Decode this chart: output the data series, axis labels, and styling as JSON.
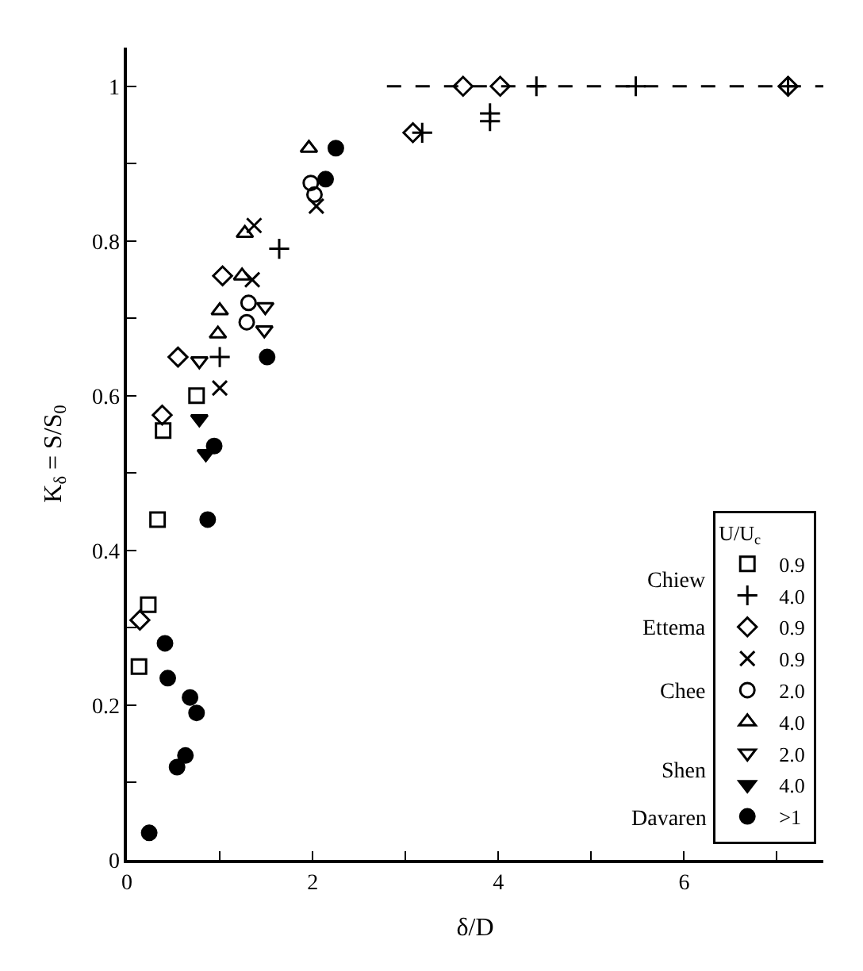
{
  "chart_data": {
    "type": "scatter",
    "xlabel": "δ/D",
    "ylabel": "K$_{δ}$ = S/S$_{0}$",
    "legend_title": "U/U$_{c}$",
    "legend": "bottom right",
    "annotations": [
      "Chiew",
      "Ettema",
      "Chee",
      "Shen",
      "Davaren"
    ],
    "xlim": [
      0,
      7.5
    ],
    "ylim": [
      0,
      1.05
    ],
    "xticks": [
      0,
      {
        "value": 1,
        "label": null
      },
      2,
      {
        "value": 3,
        "label": null
      },
      4,
      {
        "value": 5,
        "label": null
      },
      6,
      {
        "value": 7,
        "label": null
      }
    ],
    "yticks": [
      0,
      {
        "value": 0.1,
        "label": null
      },
      0.2,
      {
        "value": 0.3,
        "label": null
      },
      0.4,
      {
        "value": 0.5,
        "label": null
      },
      0.6,
      {
        "value": 0.7,
        "label": null
      },
      0.8,
      {
        "value": 0.9,
        "label": null
      },
      1
    ],
    "series": [
      {
        "name": "0.9",
        "color": "#000000",
        "marker": "square-open",
        "x": [
          0.13,
          0.23,
          0.33,
          0.39,
          0.75
        ],
        "values": [
          0.25,
          0.33,
          0.44,
          0.555,
          0.6
        ]
      },
      {
        "name": "4.0",
        "color": "#000000",
        "marker": "cross",
        "x": [
          1.0,
          1.64,
          3.18,
          3.91,
          3.91,
          4.41,
          5.48,
          7.12
        ],
        "values": [
          0.65,
          0.79,
          0.94,
          0.965,
          0.955,
          1.0,
          1.0,
          1.0
        ]
      },
      {
        "name": "0.9",
        "color": "#000000",
        "marker": "diamond-open",
        "x": [
          0.14,
          0.38,
          0.55,
          1.03,
          3.08,
          3.62,
          4.02,
          7.12
        ],
        "values": [
          0.31,
          0.575,
          0.65,
          0.755,
          0.94,
          1.0,
          1.0,
          1.0
        ]
      },
      {
        "name": "0.9",
        "color": "#000000",
        "marker": "x",
        "x": [
          1.0,
          1.35,
          1.37,
          2.04
        ],
        "values": [
          0.61,
          0.75,
          0.82,
          0.845
        ]
      },
      {
        "name": "2.0",
        "color": "#000000",
        "marker": "circle-open",
        "x": [
          1.29,
          1.31,
          1.98,
          2.02
        ],
        "values": [
          0.695,
          0.72,
          0.875,
          0.86
        ]
      },
      {
        "name": "4.0",
        "color": "#000000",
        "marker": "triangle-up-open",
        "x": [
          0.98,
          1.0,
          1.24,
          1.27,
          1.96
        ],
        "values": [
          0.68,
          0.71,
          0.755,
          0.81,
          0.92
        ]
      },
      {
        "name": "2.0",
        "color": "#000000",
        "marker": "triangle-down-open",
        "x": [
          0.78,
          1.48,
          1.49
        ],
        "values": [
          0.645,
          0.685,
          0.715
        ]
      },
      {
        "name": "4.0",
        "color": "#000000",
        "marker": "triangle-down",
        "x": [
          0.78,
          0.85
        ],
        "values": [
          0.57,
          0.525
        ]
      },
      {
        "name": ">1",
        "color": "#000000",
        "marker": "circle",
        "x": [
          0.24,
          0.41,
          0.44,
          0.68,
          0.75,
          0.63,
          0.54,
          0.87,
          0.94,
          1.51,
          2.14,
          2.25
        ],
        "values": [
          0.035,
          0.28,
          0.235,
          0.21,
          0.19,
          0.135,
          0.12,
          0.44,
          0.535,
          0.65,
          0.88,
          0.92
        ]
      },
      {
        "type": "line",
        "line_style": "dashed",
        "color": "#000000",
        "marker": "none",
        "x": [
          2.8,
          7.5
        ],
        "values": [
          1,
          1
        ]
      }
    ]
  }
}
